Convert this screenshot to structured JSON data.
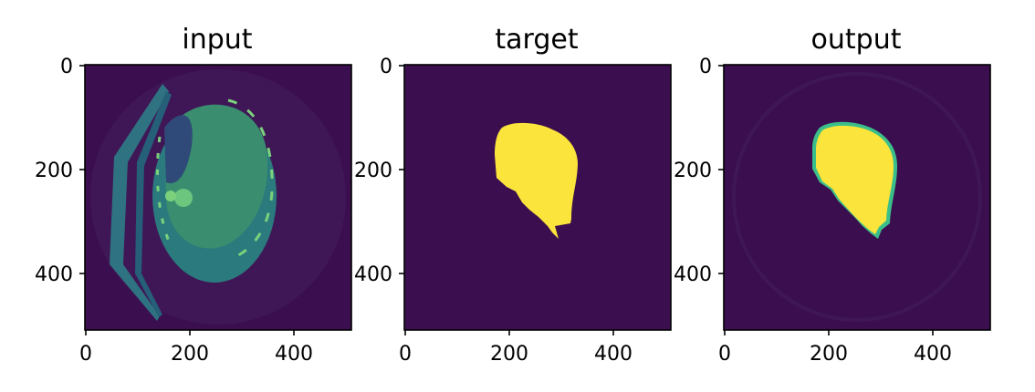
{
  "colors": {
    "background": "#3b0f4f",
    "body_outer": "#2f6c80",
    "body_inner": "#2a7a7e",
    "lung_dark": "#2f4a78",
    "bright_bone": "#7bd17b",
    "mask": "#fbe43b",
    "mask_edge": "#3bbf8a",
    "table": "#2d7c86"
  },
  "panels": [
    {
      "title": "input",
      "image": "ct-slice",
      "xticks": [
        "0",
        "200",
        "400"
      ],
      "yticks": [
        "0",
        "200",
        "400"
      ]
    },
    {
      "title": "target",
      "image": "mask",
      "xticks": [
        "0",
        "200",
        "400"
      ],
      "yticks": [
        "0",
        "200",
        "400"
      ]
    },
    {
      "title": "output",
      "image": "predicted",
      "xticks": [
        "0",
        "200",
        "400"
      ],
      "yticks": [
        "0",
        "200",
        "400"
      ]
    }
  ]
}
